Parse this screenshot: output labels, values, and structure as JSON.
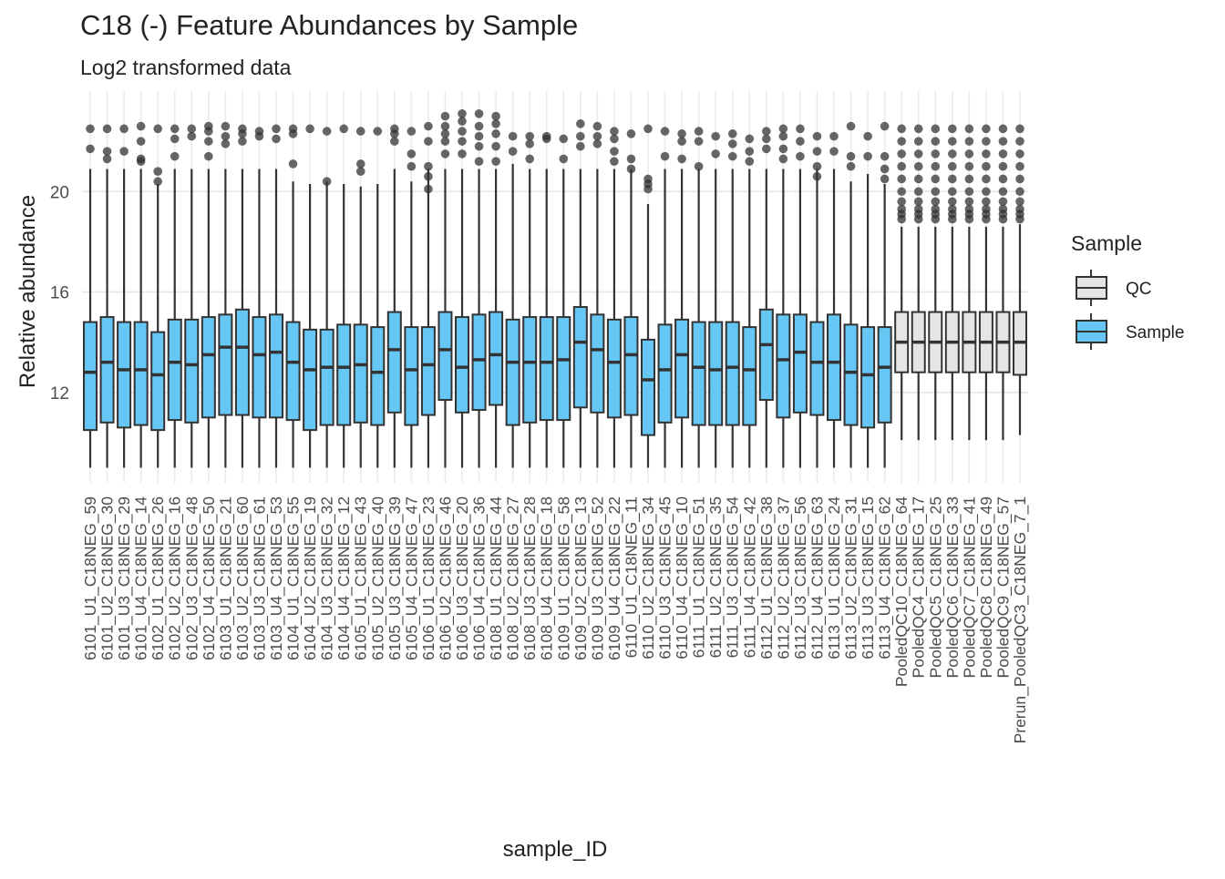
{
  "chart_data": {
    "type": "box",
    "title": "C18 (-) Feature Abundances by Sample",
    "subtitle": "Log2 transformed data",
    "x_label": "sample_ID",
    "y_label": "Relative abundance",
    "legend_title": "Sample",
    "ylim": [
      8.4,
      24.0
    ],
    "yticks": [
      12,
      16,
      20
    ],
    "grid": true,
    "categories": [
      "6101_U1_C18NEG_59",
      "6101_U2_C18NEG_30",
      "6101_U3_C18NEG_29",
      "6101_U4_C18NEG_14",
      "6102_U1_C18NEG_26",
      "6102_U2_C18NEG_16",
      "6102_U3_C18NEG_48",
      "6102_U4_C18NEG_50",
      "6103_U1_C18NEG_21",
      "6103_U2_C18NEG_60",
      "6103_U3_C18NEG_61",
      "6103_U4_C18NEG_53",
      "6104_U1_C18NEG_55",
      "6104_U2_C18NEG_19",
      "6104_U3_C18NEG_32",
      "6104_U4_C18NEG_12",
      "6105_U1_C18NEG_43",
      "6105_U2_C18NEG_40",
      "6105_U3_C18NEG_39",
      "6105_U4_C18NEG_47",
      "6106_U1_C18NEG_23",
      "6106_U2_C18NEG_46",
      "6106_U3_C18NEG_20",
      "6106_U4_C18NEG_36",
      "6108_U1_C18NEG_44",
      "6108_U2_C18NEG_27",
      "6108_U3_C18NEG_28",
      "6108_U4_C18NEG_18",
      "6109_U1_C18NEG_58",
      "6109_U2_C18NEG_13",
      "6109_U3_C18NEG_52",
      "6109_U4_C18NEG_22",
      "6110_U1_C18NEG_11",
      "6110_U2_C18NEG_34",
      "6110_U3_C18NEG_45",
      "6110_U4_C18NEG_10",
      "6111_U1_C18NEG_51",
      "6111_U2_C18NEG_35",
      "6111_U3_C18NEG_54",
      "6111_U4_C18NEG_42",
      "6112_U1_C18NEG_38",
      "6112_U2_C18NEG_37",
      "6112_U3_C18NEG_56",
      "6112_U4_C18NEG_63",
      "6113_U1_C18NEG_24",
      "6113_U2_C18NEG_31",
      "6113_U3_C18NEG_15",
      "6113_U4_C18NEG_62",
      "PooledQC10_C18NEG_64",
      "PooledQC4_C18NEG_17",
      "PooledQC5_C18NEG_25",
      "PooledQC6_C18NEG_33",
      "PooledQC7_C18NEG_41",
      "PooledQC8_C18NEG_49",
      "PooledQC9_C18NEG_57",
      "Prerun_PooledQC3_C18NEG_7_1"
    ],
    "series": [
      {
        "name": "QC",
        "color": "#e5e5e5",
        "values": [
          null,
          null,
          null,
          null,
          null,
          null,
          null,
          null,
          null,
          null,
          null,
          null,
          null,
          null,
          null,
          null,
          null,
          null,
          null,
          null,
          null,
          null,
          null,
          null,
          null,
          null,
          null,
          null,
          null,
          null,
          null,
          null,
          null,
          null,
          null,
          null,
          null,
          null,
          null,
          null,
          null,
          null,
          null,
          null,
          null,
          null,
          null,
          null,
          {
            "low": 10.1,
            "q1": 12.8,
            "median": 14.0,
            "q3": 15.2,
            "high": 18.6,
            "outliers": [
              18.9,
              19.1,
              19.3,
              19.6,
              20.0,
              20.5,
              21.0,
              21.5,
              22.0,
              22.5
            ]
          },
          {
            "low": 10.1,
            "q1": 12.8,
            "median": 14.0,
            "q3": 15.2,
            "high": 18.6,
            "outliers": [
              18.9,
              19.1,
              19.3,
              19.6,
              20.0,
              20.5,
              21.0,
              21.5,
              22.0,
              22.5
            ]
          },
          {
            "low": 10.1,
            "q1": 12.8,
            "median": 14.0,
            "q3": 15.2,
            "high": 18.6,
            "outliers": [
              18.9,
              19.1,
              19.3,
              19.6,
              20.0,
              20.5,
              21.0,
              21.5,
              22.0,
              22.5
            ]
          },
          {
            "low": 10.1,
            "q1": 12.8,
            "median": 14.0,
            "q3": 15.2,
            "high": 18.6,
            "outliers": [
              18.9,
              19.1,
              19.3,
              19.6,
              20.0,
              20.5,
              21.0,
              21.5,
              22.0,
              22.5
            ]
          },
          {
            "low": 10.1,
            "q1": 12.8,
            "median": 14.0,
            "q3": 15.2,
            "high": 18.6,
            "outliers": [
              18.9,
              19.1,
              19.3,
              19.6,
              20.0,
              20.5,
              21.0,
              21.5,
              22.0,
              22.5
            ]
          },
          {
            "low": 10.1,
            "q1": 12.8,
            "median": 14.0,
            "q3": 15.2,
            "high": 18.6,
            "outliers": [
              18.9,
              19.1,
              19.3,
              19.6,
              20.0,
              20.5,
              21.0,
              21.5,
              22.0,
              22.5
            ]
          },
          {
            "low": 10.1,
            "q1": 12.8,
            "median": 14.0,
            "q3": 15.2,
            "high": 18.6,
            "outliers": [
              18.9,
              19.1,
              19.3,
              19.6,
              20.0,
              20.5,
              21.0,
              21.5,
              22.0,
              22.5
            ]
          },
          {
            "low": 10.3,
            "q1": 12.7,
            "median": 14.0,
            "q3": 15.2,
            "high": 18.7,
            "outliers": [
              18.9,
              19.1,
              19.3,
              19.6,
              20.0,
              20.5,
              21.0,
              21.5,
              22.0,
              22.5
            ]
          }
        ]
      },
      {
        "name": "Sample",
        "color": "#66c7f5",
        "values": [
          {
            "low": 9.0,
            "q1": 10.5,
            "median": 12.8,
            "q3": 14.8,
            "high": 20.9,
            "outliers": [
              21.7,
              22.5
            ]
          },
          {
            "low": 9.0,
            "q1": 10.8,
            "median": 13.2,
            "q3": 15.0,
            "high": 20.9,
            "outliers": [
              21.3,
              21.6,
              22.5
            ]
          },
          {
            "low": 9.0,
            "q1": 10.6,
            "median": 12.9,
            "q3": 14.8,
            "high": 20.9,
            "outliers": [
              21.6,
              22.5
            ]
          },
          {
            "low": 9.0,
            "q1": 10.7,
            "median": 12.9,
            "q3": 14.8,
            "high": 20.9,
            "outliers": [
              21.2,
              21.3,
              22.0,
              22.6
            ]
          },
          {
            "low": 9.0,
            "q1": 10.5,
            "median": 12.7,
            "q3": 14.4,
            "high": 20.3,
            "outliers": [
              20.4,
              20.8,
              22.5
            ]
          },
          {
            "low": 9.0,
            "q1": 10.9,
            "median": 13.2,
            "q3": 14.9,
            "high": 20.9,
            "outliers": [
              21.4,
              22.1,
              22.5
            ]
          },
          {
            "low": 9.0,
            "q1": 10.8,
            "median": 13.1,
            "q3": 14.9,
            "high": 20.9,
            "outliers": [
              22.2,
              22.5
            ]
          },
          {
            "low": 9.0,
            "q1": 11.0,
            "median": 13.5,
            "q3": 15.0,
            "high": 20.9,
            "outliers": [
              21.4,
              22.0,
              22.4,
              22.6
            ]
          },
          {
            "low": 9.0,
            "q1": 11.1,
            "median": 13.8,
            "q3": 15.1,
            "high": 20.9,
            "outliers": [
              21.9,
              22.2,
              22.6
            ]
          },
          {
            "low": 9.0,
            "q1": 11.1,
            "median": 13.8,
            "q3": 15.3,
            "high": 20.9,
            "outliers": [
              22.0,
              22.3,
              22.5
            ]
          },
          {
            "low": 9.0,
            "q1": 11.0,
            "median": 13.5,
            "q3": 15.0,
            "high": 20.9,
            "outliers": [
              22.2,
              22.4
            ]
          },
          {
            "low": 9.0,
            "q1": 11.0,
            "median": 13.6,
            "q3": 15.1,
            "high": 20.9,
            "outliers": [
              22.1,
              22.5
            ]
          },
          {
            "low": 9.0,
            "q1": 10.9,
            "median": 13.2,
            "q3": 14.8,
            "high": 20.4,
            "outliers": [
              21.1,
              22.3,
              22.5
            ]
          },
          {
            "low": 9.0,
            "q1": 10.5,
            "median": 12.9,
            "q3": 14.5,
            "high": 20.3,
            "outliers": [
              22.5
            ]
          },
          {
            "low": 9.0,
            "q1": 10.7,
            "median": 13.0,
            "q3": 14.5,
            "high": 20.4,
            "outliers": [
              20.4,
              22.4
            ]
          },
          {
            "low": 9.0,
            "q1": 10.7,
            "median": 13.0,
            "q3": 14.7,
            "high": 20.3,
            "outliers": [
              22.5
            ]
          },
          {
            "low": 9.0,
            "q1": 10.8,
            "median": 13.1,
            "q3": 14.7,
            "high": 20.2,
            "outliers": [
              20.8,
              21.1,
              22.4
            ]
          },
          {
            "low": 9.0,
            "q1": 10.7,
            "median": 12.8,
            "q3": 14.6,
            "high": 20.3,
            "outliers": [
              22.4
            ]
          },
          {
            "low": 9.0,
            "q1": 11.2,
            "median": 13.7,
            "q3": 15.2,
            "high": 20.9,
            "outliers": [
              22.0,
              22.3,
              22.5
            ]
          },
          {
            "low": 9.0,
            "q1": 10.7,
            "median": 12.9,
            "q3": 14.6,
            "high": 20.4,
            "outliers": [
              21.0,
              21.5,
              22.4
            ]
          },
          {
            "low": 9.0,
            "q1": 11.1,
            "median": 13.1,
            "q3": 14.6,
            "high": 20.9,
            "outliers": [
              20.1,
              20.6,
              21.0,
              22.0,
              22.6
            ]
          },
          {
            "low": 9.0,
            "q1": 11.7,
            "median": 13.7,
            "q3": 15.2,
            "high": 20.9,
            "outliers": [
              21.5,
              22.0,
              22.3,
              22.6,
              23.0
            ]
          },
          {
            "low": 9.0,
            "q1": 11.2,
            "median": 13.0,
            "q3": 15.0,
            "high": 20.9,
            "outliers": [
              21.5,
              22.0,
              22.4,
              22.8,
              23.1
            ]
          },
          {
            "low": 9.0,
            "q1": 11.3,
            "median": 13.3,
            "q3": 15.1,
            "high": 20.9,
            "outliers": [
              21.2,
              21.8,
              22.2,
              22.6,
              23.1
            ]
          },
          {
            "low": 9.0,
            "q1": 11.5,
            "median": 13.5,
            "q3": 15.2,
            "high": 20.9,
            "outliers": [
              21.2,
              21.8,
              22.3,
              22.7,
              23.0
            ]
          },
          {
            "low": 9.0,
            "q1": 10.7,
            "median": 13.2,
            "q3": 14.9,
            "high": 21.1,
            "outliers": [
              21.6,
              22.2
            ]
          },
          {
            "low": 9.0,
            "q1": 10.8,
            "median": 13.2,
            "q3": 15.0,
            "high": 20.9,
            "outliers": [
              21.3,
              21.9,
              22.2
            ]
          },
          {
            "low": 9.0,
            "q1": 10.9,
            "median": 13.2,
            "q3": 15.0,
            "high": 20.9,
            "outliers": [
              22.1,
              22.2
            ]
          },
          {
            "low": 9.0,
            "q1": 10.9,
            "median": 13.3,
            "q3": 15.0,
            "high": 20.9,
            "outliers": [
              21.3,
              22.1
            ]
          },
          {
            "low": 9.0,
            "q1": 11.4,
            "median": 14.0,
            "q3": 15.4,
            "high": 20.9,
            "outliers": [
              21.8,
              22.2,
              22.7
            ]
          },
          {
            "low": 9.0,
            "q1": 11.2,
            "median": 13.7,
            "q3": 15.1,
            "high": 20.9,
            "outliers": [
              21.9,
              22.2,
              22.6
            ]
          },
          {
            "low": 9.0,
            "q1": 11.0,
            "median": 13.2,
            "q3": 14.9,
            "high": 20.9,
            "outliers": [
              21.2,
              21.6,
              22.1,
              22.4
            ]
          },
          {
            "low": 9.0,
            "q1": 11.1,
            "median": 13.5,
            "q3": 15.0,
            "high": 20.9,
            "outliers": [
              20.9,
              21.3,
              22.3
            ]
          },
          {
            "low": 9.0,
            "q1": 10.3,
            "median": 12.5,
            "q3": 14.1,
            "high": 19.5,
            "outliers": [
              20.1,
              20.3,
              20.5,
              22.5
            ]
          },
          {
            "low": 9.0,
            "q1": 10.8,
            "median": 12.9,
            "q3": 14.7,
            "high": 20.9,
            "outliers": [
              21.4,
              22.4
            ]
          },
          {
            "low": 9.0,
            "q1": 11.0,
            "median": 13.5,
            "q3": 14.9,
            "high": 20.9,
            "outliers": [
              21.3,
              22.0,
              22.3
            ]
          },
          {
            "low": 9.0,
            "q1": 10.7,
            "median": 13.0,
            "q3": 14.8,
            "high": 20.9,
            "outliers": [
              21.0,
              22.0,
              22.4
            ]
          },
          {
            "low": 9.0,
            "q1": 10.7,
            "median": 12.9,
            "q3": 14.8,
            "high": 20.9,
            "outliers": [
              21.5,
              22.2
            ]
          },
          {
            "low": 9.0,
            "q1": 10.7,
            "median": 13.0,
            "q3": 14.8,
            "high": 20.9,
            "outliers": [
              21.4,
              21.9,
              22.3
            ]
          },
          {
            "low": 9.0,
            "q1": 10.7,
            "median": 12.9,
            "q3": 14.6,
            "high": 20.9,
            "outliers": [
              21.2,
              21.6,
              22.1
            ]
          },
          {
            "low": 9.0,
            "q1": 11.7,
            "median": 13.9,
            "q3": 15.3,
            "high": 20.9,
            "outliers": [
              21.7,
              22.1,
              22.4
            ]
          },
          {
            "low": 9.0,
            "q1": 11.0,
            "median": 13.3,
            "q3": 15.1,
            "high": 20.9,
            "outliers": [
              21.3,
              21.7,
              22.2,
              22.5
            ]
          },
          {
            "low": 9.0,
            "q1": 11.2,
            "median": 13.6,
            "q3": 15.1,
            "high": 20.9,
            "outliers": [
              21.4,
              22.0,
              22.5
            ]
          },
          {
            "low": 9.0,
            "q1": 11.1,
            "median": 13.2,
            "q3": 14.8,
            "high": 20.9,
            "outliers": [
              20.6,
              21.0,
              21.6,
              22.2
            ]
          },
          {
            "low": 9.0,
            "q1": 10.9,
            "median": 13.2,
            "q3": 15.1,
            "high": 20.9,
            "outliers": [
              21.6,
              22.2
            ]
          },
          {
            "low": 9.0,
            "q1": 10.7,
            "median": 12.8,
            "q3": 14.7,
            "high": 20.4,
            "outliers": [
              21.0,
              21.4,
              22.6
            ]
          },
          {
            "low": 9.0,
            "q1": 10.6,
            "median": 12.7,
            "q3": 14.6,
            "high": 20.7,
            "outliers": [
              21.4,
              22.2
            ]
          },
          {
            "low": 9.0,
            "q1": 10.8,
            "median": 13.0,
            "q3": 14.6,
            "high": 20.3,
            "outliers": [
              20.5,
              20.9,
              21.4,
              22.6
            ]
          },
          null,
          null,
          null,
          null,
          null,
          null,
          null,
          null
        ]
      }
    ]
  }
}
